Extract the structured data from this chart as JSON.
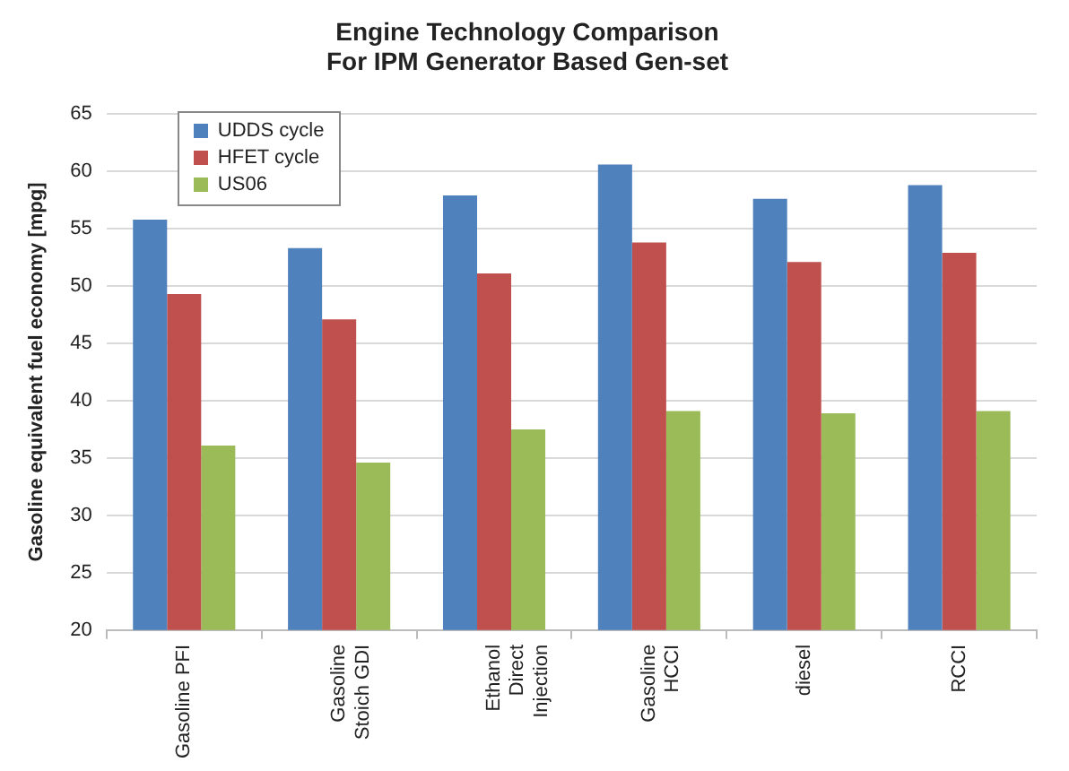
{
  "chart_data": {
    "type": "bar",
    "title": "Engine Technology Comparison\nFor IPM Generator Based Gen-set",
    "ylabel": "Gasoline equivalent fuel economy [mpg]",
    "categories": [
      "Gasoline PFI",
      "Gasoline\nStoich GDI",
      "Ethanol\nDirect\nInjection",
      "Gasoline\nHCCI",
      "diesel",
      "RCCI"
    ],
    "series": [
      {
        "name": "UDDS cycle",
        "color": "#4f81bd",
        "values": [
          55.8,
          53.3,
          57.9,
          60.6,
          57.6,
          58.8
        ]
      },
      {
        "name": "HFET cycle",
        "color": "#c0504d",
        "values": [
          49.3,
          47.1,
          51.1,
          53.8,
          52.1,
          52.9
        ]
      },
      {
        "name": "US06",
        "color": "#9bbb59",
        "values": [
          36.1,
          34.6,
          37.5,
          39.1,
          38.9,
          39.1
        ]
      }
    ],
    "ylim": [
      20,
      65
    ],
    "yticks": [
      20,
      25,
      30,
      35,
      40,
      45,
      50,
      55,
      60,
      65
    ],
    "grid": "y",
    "legend": "top left"
  }
}
